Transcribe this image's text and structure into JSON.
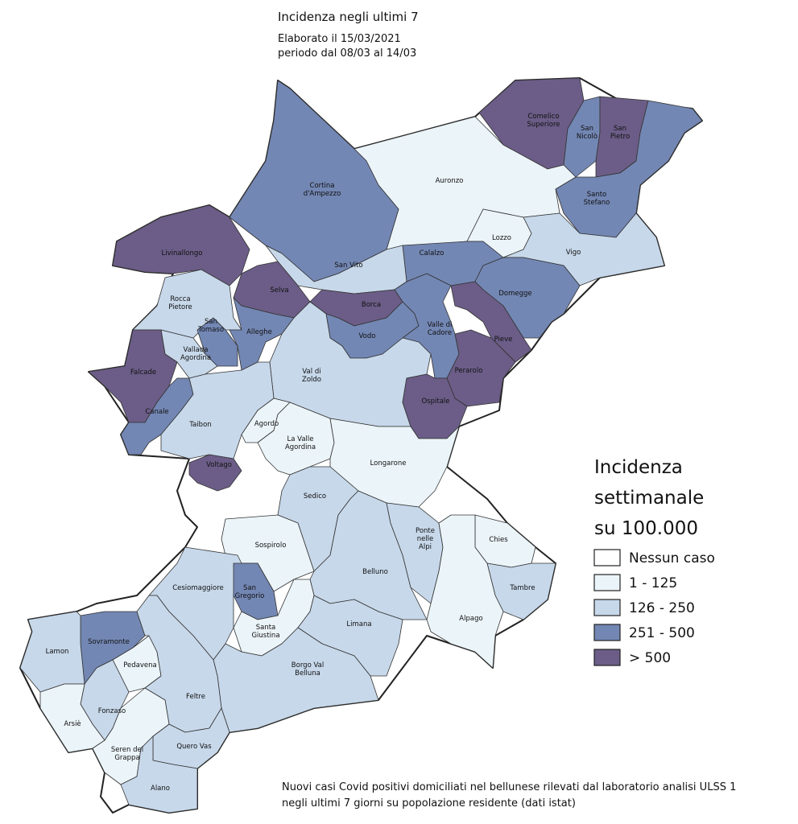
{
  "header": {
    "title": "Incidenza  negli  ultimi  7",
    "subtitle": [
      "Elaborato il 15/03/2021",
      "periodo  dal 08/03 al 14/03"
    ]
  },
  "legend": {
    "title": [
      "Incidenza",
      "settimanale",
      "su 100.000"
    ],
    "items": [
      {
        "label": "Nessun caso",
        "color": "#ffffff"
      },
      {
        "label": "1 - 125",
        "color": "#ebf4f9"
      },
      {
        "label": "126 - 250",
        "color": "#c7d8ea"
      },
      {
        "label": "251 - 500",
        "color": "#7387b4"
      },
      {
        "label": "> 500",
        "color": "#6b5d87"
      }
    ]
  },
  "map": {
    "regions": [
      {
        "label": [
          "Comelico",
          "Superiore"
        ],
        "color": "#6b5d87"
      },
      {
        "label": [
          "San",
          "Nicolò"
        ],
        "color": "#7387b4"
      },
      {
        "label": [
          "San",
          "Pietro"
        ],
        "color": "#6b5d87"
      },
      {
        "label": [
          "Santo",
          "Stefano"
        ],
        "color": "#7387b4"
      },
      {
        "label": [
          "Auronzo"
        ],
        "color": "#ebf4f9"
      },
      {
        "label": [
          "Cortina",
          "d'Ampezzo"
        ],
        "color": "#7387b4"
      },
      {
        "label": [
          "Livinallongo"
        ],
        "color": "#6b5d87"
      },
      {
        "label": [
          "Lozzo"
        ],
        "color": "#ebf4f9"
      },
      {
        "label": [
          "Vigo"
        ],
        "color": "#c7d8ea"
      },
      {
        "label": [
          "Calalzo"
        ],
        "color": "#7387b4"
      },
      {
        "label": [
          "Domegge"
        ],
        "color": "#7387b4"
      },
      {
        "label": [
          "San Vito"
        ],
        "color": "#c7d8ea"
      },
      {
        "label": [
          "Rocca",
          "Pietore"
        ],
        "color": "#c7d8ea"
      },
      {
        "label": [
          "Selva"
        ],
        "color": "#6b5d87"
      },
      {
        "label": [
          "Borca"
        ],
        "color": "#6b5d87"
      },
      {
        "label": [
          "Alleghe"
        ],
        "color": "#7387b4"
      },
      {
        "label": [
          "San",
          "Tomaso"
        ],
        "color": "#7387b4"
      },
      {
        "label": [
          "Vodo"
        ],
        "color": "#7387b4"
      },
      {
        "label": [
          "Valle di",
          "Cadore"
        ],
        "color": "#7387b4"
      },
      {
        "label": [
          "Pieve"
        ],
        "color": "#6b5d87"
      },
      {
        "label": [
          "Perarolo"
        ],
        "color": "#6b5d87"
      },
      {
        "label": [
          "Vallada",
          "Agordina"
        ],
        "color": "#c7d8ea"
      },
      {
        "label": [
          "Falcade"
        ],
        "color": "#6b5d87"
      },
      {
        "label": [
          "Val di",
          "Zoldo"
        ],
        "color": "#c7d8ea"
      },
      {
        "label": [
          "Ospitale"
        ],
        "color": "#6b5d87"
      },
      {
        "label": [
          "Canale"
        ],
        "color": "#7387b4"
      },
      {
        "label": [
          "Taibon"
        ],
        "color": "#c7d8ea"
      },
      {
        "label": [
          "Agordo"
        ],
        "color": "#ebf4f9"
      },
      {
        "label": [
          "La Valle",
          "Agordina"
        ],
        "color": "#ebf4f9"
      },
      {
        "label": [
          "Longarone"
        ],
        "color": "#ebf4f9"
      },
      {
        "label": [
          "Voltago"
        ],
        "color": "#6b5d87"
      },
      {
        "label": [
          "Sedico"
        ],
        "color": "#c7d8ea"
      },
      {
        "label": [
          "Sospirolo"
        ],
        "color": "#ebf4f9"
      },
      {
        "label": [
          "Belluno"
        ],
        "color": "#c7d8ea"
      },
      {
        "label": [
          "Ponte",
          "nelle",
          "Alpi"
        ],
        "color": "#c7d8ea"
      },
      {
        "label": [
          "Chies"
        ],
        "color": "#ebf4f9"
      },
      {
        "label": [
          "Tambre"
        ],
        "color": "#c7d8ea"
      },
      {
        "label": [
          "Alpago"
        ],
        "color": "#ebf4f9"
      },
      {
        "label": [
          "Cesiomaggiore"
        ],
        "color": "#c7d8ea"
      },
      {
        "label": [
          "San",
          "Gregorio"
        ],
        "color": "#7387b4"
      },
      {
        "label": [
          "Santa",
          "Giustina"
        ],
        "color": "#ebf4f9"
      },
      {
        "label": [
          "Limana"
        ],
        "color": "#c7d8ea"
      },
      {
        "label": [
          "Borgo Val",
          "Belluna"
        ],
        "color": "#c7d8ea"
      },
      {
        "label": [
          "Sovramonte"
        ],
        "color": "#7387b4"
      },
      {
        "label": [
          "Lamon"
        ],
        "color": "#c7d8ea"
      },
      {
        "label": [
          "Pedavena"
        ],
        "color": "#ebf4f9"
      },
      {
        "label": [
          "Feltre"
        ],
        "color": "#c7d8ea"
      },
      {
        "label": [
          "Fonzaso"
        ],
        "color": "#c7d8ea"
      },
      {
        "label": [
          "Arsiè"
        ],
        "color": "#ebf4f9"
      },
      {
        "label": [
          "Seren del",
          "Grappa"
        ],
        "color": "#ebf4f9"
      },
      {
        "label": [
          "Quero Vas"
        ],
        "color": "#c7d8ea"
      },
      {
        "label": [
          "Alano"
        ],
        "color": "#c7d8ea"
      }
    ]
  },
  "footer": [
    "Nuovi casi Covid positivi domiciliati nel bellunese rilevati dal laboratorio analisi ULSS 1",
    "negli ultimi 7 giorni su popolazione residente (dati istat)"
  ]
}
